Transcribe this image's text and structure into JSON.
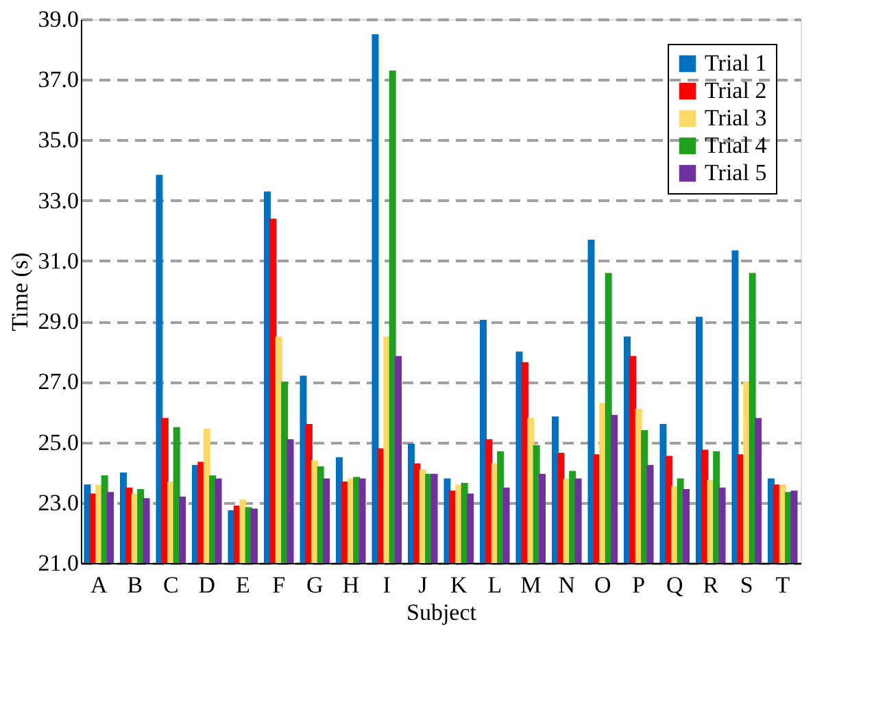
{
  "chart_data": {
    "type": "bar",
    "xlabel": "Subject",
    "ylabel": "Time (s)",
    "categories": [
      "A",
      "B",
      "C",
      "D",
      "E",
      "F",
      "G",
      "H",
      "I",
      "J",
      "K",
      "L",
      "M",
      "N",
      "O",
      "P",
      "Q",
      "R",
      "S",
      "T"
    ],
    "series": [
      {
        "name": "Trial 1",
        "color": "#0070c0",
        "values": [
          23.6,
          24.0,
          33.85,
          24.25,
          22.75,
          33.3,
          27.2,
          24.5,
          38.5,
          24.95,
          23.8,
          29.05,
          28.0,
          25.85,
          31.7,
          28.5,
          25.6,
          29.15,
          31.35,
          23.8
        ]
      },
      {
        "name": "Trial 2",
        "color": "#ff0000",
        "values": [
          23.3,
          23.5,
          25.8,
          24.35,
          22.9,
          32.4,
          25.6,
          23.7,
          24.8,
          24.3,
          23.4,
          25.1,
          27.65,
          24.65,
          24.6,
          27.85,
          24.55,
          24.75,
          24.6,
          23.6
        ]
      },
      {
        "name": "Trial 3",
        "color": "#ffd966",
        "values": [
          23.6,
          23.3,
          23.7,
          25.45,
          23.1,
          28.5,
          24.4,
          23.8,
          28.5,
          24.1,
          23.6,
          24.3,
          25.8,
          23.8,
          26.3,
          26.1,
          23.55,
          23.75,
          27.0,
          23.6
        ]
      },
      {
        "name": "Trial 4",
        "color": "#1fa01f",
        "values": [
          23.9,
          23.45,
          25.5,
          23.9,
          22.85,
          27.0,
          24.2,
          23.85,
          37.3,
          23.95,
          23.65,
          24.7,
          24.9,
          24.05,
          30.6,
          25.4,
          23.8,
          24.7,
          30.6,
          23.35
        ]
      },
      {
        "name": "Trial 5",
        "color": "#7030a0",
        "values": [
          23.35,
          23.15,
          23.2,
          23.8,
          22.8,
          25.1,
          23.8,
          23.8,
          27.85,
          23.95,
          23.3,
          23.5,
          23.95,
          23.8,
          25.9,
          24.25,
          23.45,
          23.5,
          25.8,
          23.4
        ]
      }
    ],
    "ylim": [
      21,
      39
    ],
    "yticks": [
      {
        "value": 21,
        "label": "21.0"
      },
      {
        "value": 23,
        "label": "23.0"
      },
      {
        "value": 25,
        "label": "25.0"
      },
      {
        "value": 27,
        "label": "27.0"
      },
      {
        "value": 29,
        "label": "29.0"
      },
      {
        "value": 31,
        "label": "31.0"
      },
      {
        "value": 33,
        "label": "33.0"
      },
      {
        "value": 35,
        "label": "35.0"
      },
      {
        "value": 37,
        "label": "37.0"
      },
      {
        "value": 39,
        "label": "39.0"
      }
    ],
    "grid": "y",
    "legend": "top right"
  }
}
